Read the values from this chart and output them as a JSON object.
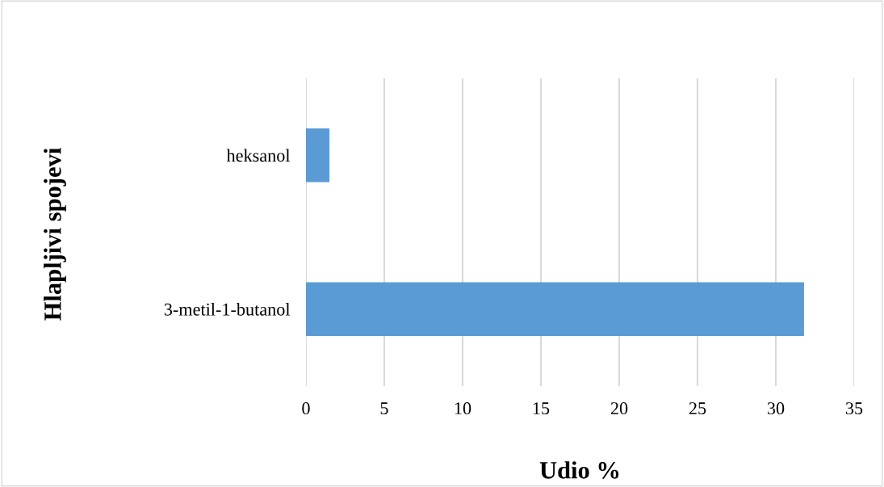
{
  "chart_data": {
    "type": "bar",
    "orientation": "horizontal",
    "xlabel": "Udio %",
    "ylabel": "Hlapljivi spojevi",
    "categories": [
      "heksanol",
      "3-metil-1-butanol"
    ],
    "values": [
      1.5,
      31.8
    ],
    "color": "#5b9bd5",
    "xlim": [
      0,
      35
    ],
    "xticks": [
      0,
      5,
      10,
      15,
      20,
      25,
      30,
      35
    ],
    "grid": "x"
  }
}
